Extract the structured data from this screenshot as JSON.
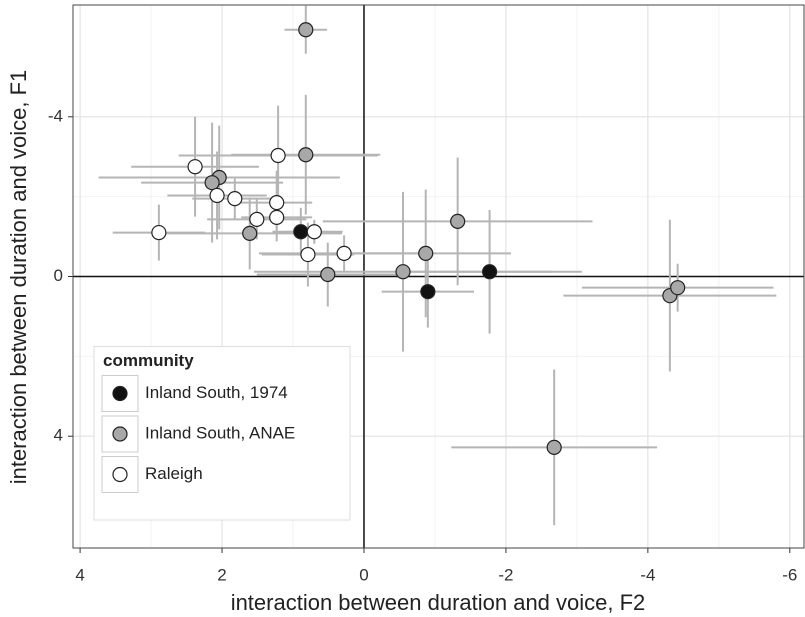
{
  "chart_data": {
    "type": "scatter",
    "x_label": "interaction between duration and voice, F2",
    "y_label": "interaction between duration and voice, F1",
    "xlim": [
      4.1,
      -6.2
    ],
    "ylim": [
      6.8,
      -6.8
    ],
    "xticks": [
      4,
      2,
      0,
      -2,
      -4,
      -6
    ],
    "yticks": [
      -4,
      0,
      4
    ],
    "grid": true,
    "zero_lines": true,
    "legend_title": "community",
    "legend_position": "bottom-left",
    "series": [
      {
        "name": "Inland South, 1974",
        "color": "#111111",
        "x": [
          0.89,
          -0.9,
          -1.77
        ],
        "y": [
          -1.12,
          0.38,
          -0.12
        ],
        "xerr": [
          0.4,
          0.65,
          1.3
        ],
        "yerr": [
          0.6,
          0.9,
          1.55
        ]
      },
      {
        "name": "Inland South, ANAE",
        "color": "#a8a8a8",
        "x": [
          0.82,
          0.82,
          2.04,
          2.14,
          1.61,
          0.51,
          -0.55,
          -0.87,
          -1.32,
          -4.31,
          -4.42,
          -2.68
        ],
        "y": [
          -6.18,
          -3.05,
          -2.48,
          -2.35,
          -1.08,
          -0.05,
          -0.12,
          -0.58,
          -1.38,
          0.48,
          0.28,
          4.28
        ],
        "xerr": [
          0.3,
          1.05,
          1.7,
          1.0,
          1.3,
          1.0,
          2.1,
          1.2,
          1.9,
          1.5,
          1.35,
          1.45
        ],
        "yerr": [
          0.6,
          1.5,
          1.3,
          1.5,
          0.9,
          0.8,
          2.0,
          1.6,
          1.6,
          1.9,
          0.6,
          1.95
        ]
      },
      {
        "name": "Raleigh",
        "color": "#ffffff",
        "x": [
          2.89,
          2.38,
          2.07,
          1.82,
          1.51,
          1.21,
          1.23,
          1.23,
          0.7,
          0.79,
          0.28
        ],
        "y": [
          -1.1,
          -2.75,
          -2.03,
          -1.95,
          -1.43,
          -3.03,
          -1.85,
          -1.48,
          -1.12,
          -0.55,
          -0.58
        ],
        "xerr": [
          0.65,
          0.9,
          0.7,
          0.6,
          0.7,
          1.4,
          0.5,
          0.5,
          0.4,
          0.65,
          1.2
        ],
        "yerr": [
          0.7,
          1.25,
          1.1,
          0.5,
          0.5,
          1.25,
          0.8,
          0.6,
          0.3,
          0.8,
          0.45
        ]
      }
    ]
  }
}
